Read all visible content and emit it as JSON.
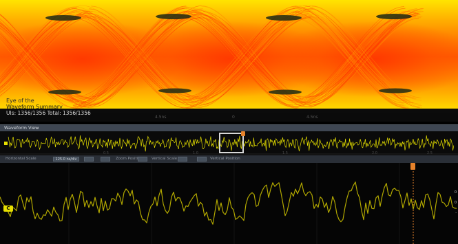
{
  "eye_diagram": {
    "info_line_1": "Eye of the",
    "info_line_2": "Waveform Summary",
    "ui_line": "UIs: 1356/1356  Total: 1356/1356",
    "colors": {
      "hot": "#ff3a00",
      "warm": "#ff8a00",
      "cool": "#ffe400",
      "eye_opening": "#1f2a14"
    }
  },
  "time_ticks": [
    "4.5ns",
    "0",
    "4.5ns"
  ],
  "waveform_view": {
    "title": "Waveform View",
    "overview_ticks": [
      "0.5",
      "1.0",
      "1.5",
      "2.0",
      "2.5"
    ],
    "trace_color": "#e6e000",
    "cursor_color": "#e6822a"
  },
  "scale_bar": {
    "horizontal_scale_label": "Horizontal Scale",
    "horizontal_scale_value": "125.0 ns/div",
    "zoom_position_label": "Zoom Position",
    "vertical_scale_label": "Vertical Scale",
    "vertical_position_label": "Vertical Position"
  },
  "zoom": {
    "channel_label": "C",
    "right_labels": [
      "0",
      "0",
      "-"
    ]
  }
}
